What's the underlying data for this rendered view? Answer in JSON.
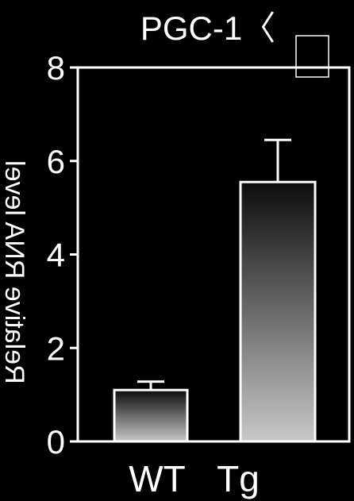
{
  "chart_data": {
    "type": "bar",
    "title": "PGC-1〈",
    "categories": [
      "WT",
      "Tg"
    ],
    "values": [
      1.1,
      5.55
    ],
    "errors": [
      0.18,
      0.9
    ],
    "ylabel": "Relative RNA level",
    "yticks": [
      0,
      2,
      4,
      6,
      8
    ],
    "ylim": [
      0,
      8
    ],
    "xlabel": "",
    "grid": false,
    "colors": {
      "background": "#000000",
      "axis": "#ffffff",
      "bar_top": "#111111",
      "bar_bottom": "#c8c8c8"
    }
  }
}
